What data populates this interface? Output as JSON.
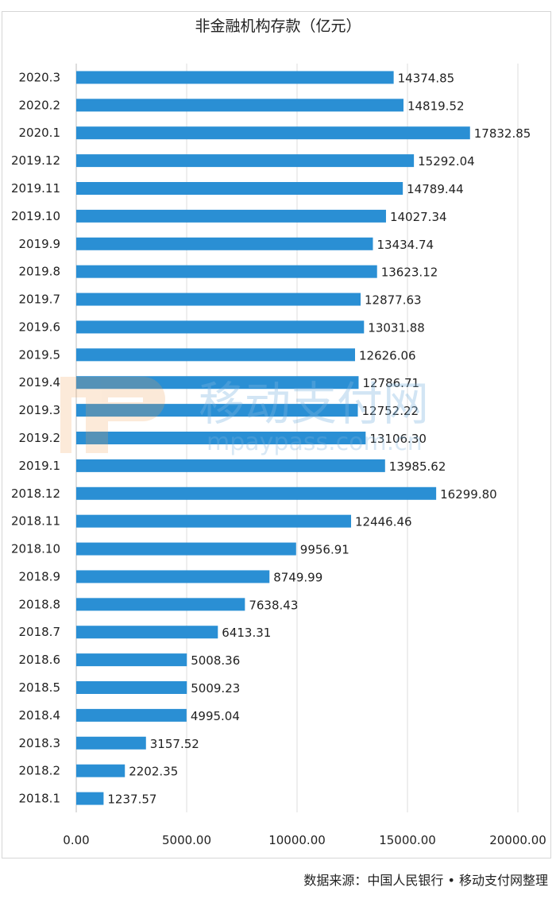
{
  "chart_data": {
    "type": "bar",
    "orientation": "horizontal",
    "title": "非金融机构存款（亿元）",
    "source": "数据来源：中国人民银行 • 移动支付网整理",
    "categories": [
      "2020.3",
      "2020.2",
      "2020.1",
      "2019.12",
      "2019.11",
      "2019.10",
      "2019.9",
      "2019.8",
      "2019.7",
      "2019.6",
      "2019.5",
      "2019.4",
      "2019.3",
      "2019.2",
      "2019.1",
      "2018.12",
      "2018.11",
      "2018.10",
      "2018.9",
      "2018.8",
      "2018.7",
      "2018.6",
      "2018.5",
      "2018.4",
      "2018.3",
      "2018.2",
      "2018.1"
    ],
    "values": [
      14374.85,
      14819.52,
      17832.85,
      15292.04,
      14789.44,
      14027.34,
      13434.74,
      13623.12,
      12877.63,
      13031.88,
      12626.06,
      12786.71,
      12752.22,
      13106.3,
      13985.62,
      16299.8,
      12446.46,
      9956.91,
      8749.99,
      7638.43,
      6413.31,
      5008.36,
      5009.23,
      4995.04,
      3157.52,
      2202.35,
      1237.57
    ],
    "value_labels": [
      "14374.85",
      "14819.52",
      "17832.85",
      "15292.04",
      "14789.44",
      "14027.34",
      "13434.74",
      "13623.12",
      "12877.63",
      "13031.88",
      "12626.06",
      "12786.71",
      "12752.22",
      "13106.30",
      "13985.62",
      "16299.80",
      "12446.46",
      "9956.91",
      "8749.99",
      "7638.43",
      "6413.31",
      "5008.36",
      "5009.23",
      "4995.04",
      "3157.52",
      "2202.35",
      "1237.57"
    ],
    "xlim": [
      0,
      20000
    ],
    "x_ticks": [
      0,
      5000,
      10000,
      15000,
      20000
    ],
    "x_tick_labels": [
      "0.00",
      "5000.00",
      "10000.00",
      "15000.00",
      "20000.00"
    ],
    "grid": "vertical",
    "legend": "none",
    "bar_color": "#2a8fd4",
    "watermark": {
      "main": "移动支付网",
      "sub": "mpaypass.com.cn",
      "logo": "MP"
    }
  }
}
